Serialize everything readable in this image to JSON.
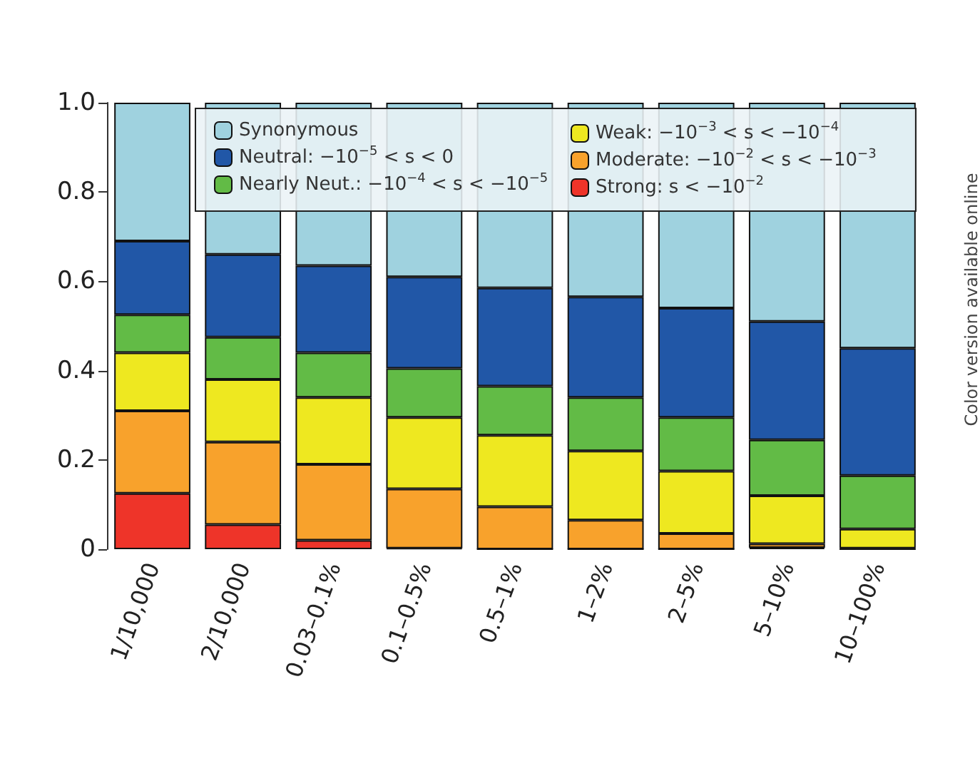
{
  "chart_data": {
    "type": "bar",
    "stacked": true,
    "categories": [
      "1/10,000",
      "2/10,000",
      "0.03–0.1%",
      "0.1–0.5%",
      "0.5–1%",
      "1–2%",
      "2–5%",
      "5–10%",
      "10–100%"
    ],
    "series": [
      {
        "name": "Strong: s < −10$^{−2}$",
        "color": "#ee3429",
        "values": [
          0.125,
          0.055,
          0.02,
          0.002,
          0,
          0,
          0,
          0.003,
          0
        ]
      },
      {
        "name": "Moderate: −10$^{−2}$ < s < −10$^{−3}$",
        "color": "#f8a22c",
        "values": [
          0.185,
          0.185,
          0.17,
          0.133,
          0.095,
          0.065,
          0.035,
          0.009,
          0.002
        ]
      },
      {
        "name": "Weak: −10$^{−3}$ < s < −10$^{−4}$",
        "color": "#eee820",
        "values": [
          0.13,
          0.14,
          0.15,
          0.16,
          0.16,
          0.155,
          0.14,
          0.108,
          0.043
        ]
      },
      {
        "name": "Nearly Neut.: −10$^{−4}$ < s < −10$^{−5}$",
        "color": "#62bb46",
        "values": [
          0.085,
          0.095,
          0.1,
          0.11,
          0.11,
          0.12,
          0.12,
          0.125,
          0.12
        ]
      },
      {
        "name": "Neutral: −10$^{−5}$ < s < 0",
        "color": "#2157a7",
        "values": [
          0.165,
          0.185,
          0.195,
          0.205,
          0.22,
          0.225,
          0.245,
          0.265,
          0.285
        ]
      },
      {
        "name": "Synonymous",
        "color": "#9fd2df",
        "values": [
          0.31,
          0.34,
          0.365,
          0.39,
          0.415,
          0.435,
          0.46,
          0.49,
          0.55
        ]
      }
    ],
    "ylim": [
      0,
      1
    ],
    "yticks": [
      0,
      0.2,
      0.4,
      0.6,
      0.8,
      {
        "value": 1,
        "label": "1.0"
      }
    ],
    "grid": false,
    "legend": "top",
    "annotations": [
      "Color version available online"
    ]
  }
}
